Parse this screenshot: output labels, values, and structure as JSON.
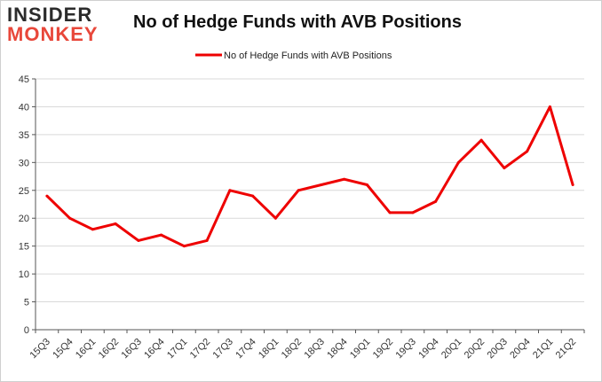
{
  "logo": {
    "line1": "INSIDER",
    "line2": "MONKEY"
  },
  "chart_data": {
    "type": "line",
    "title": "No of Hedge Funds with AVB Positions",
    "legend": "top-center",
    "grid": true,
    "ylim": [
      0,
      45
    ],
    "yticks": [
      0,
      5,
      10,
      15,
      20,
      25,
      30,
      35,
      40,
      45
    ],
    "categories": [
      "15Q3",
      "15Q4",
      "16Q1",
      "16Q2",
      "16Q3",
      "16Q4",
      "17Q1",
      "17Q2",
      "17Q3",
      "17Q4",
      "18Q1",
      "18Q2",
      "18Q3",
      "18Q4",
      "19Q1",
      "19Q2",
      "19Q3",
      "19Q4",
      "20Q1",
      "20Q2",
      "20Q3",
      "20Q4",
      "21Q1",
      "21Q2"
    ],
    "series": [
      {
        "name": "No of Hedge Funds with AVB Positions",
        "color": "#ee0000",
        "values": [
          24,
          20,
          18,
          19,
          16,
          17,
          15,
          16,
          25,
          24,
          20,
          25,
          26,
          27,
          26,
          21,
          21,
          23,
          30,
          34,
          29,
          32,
          40,
          26
        ]
      }
    ]
  }
}
